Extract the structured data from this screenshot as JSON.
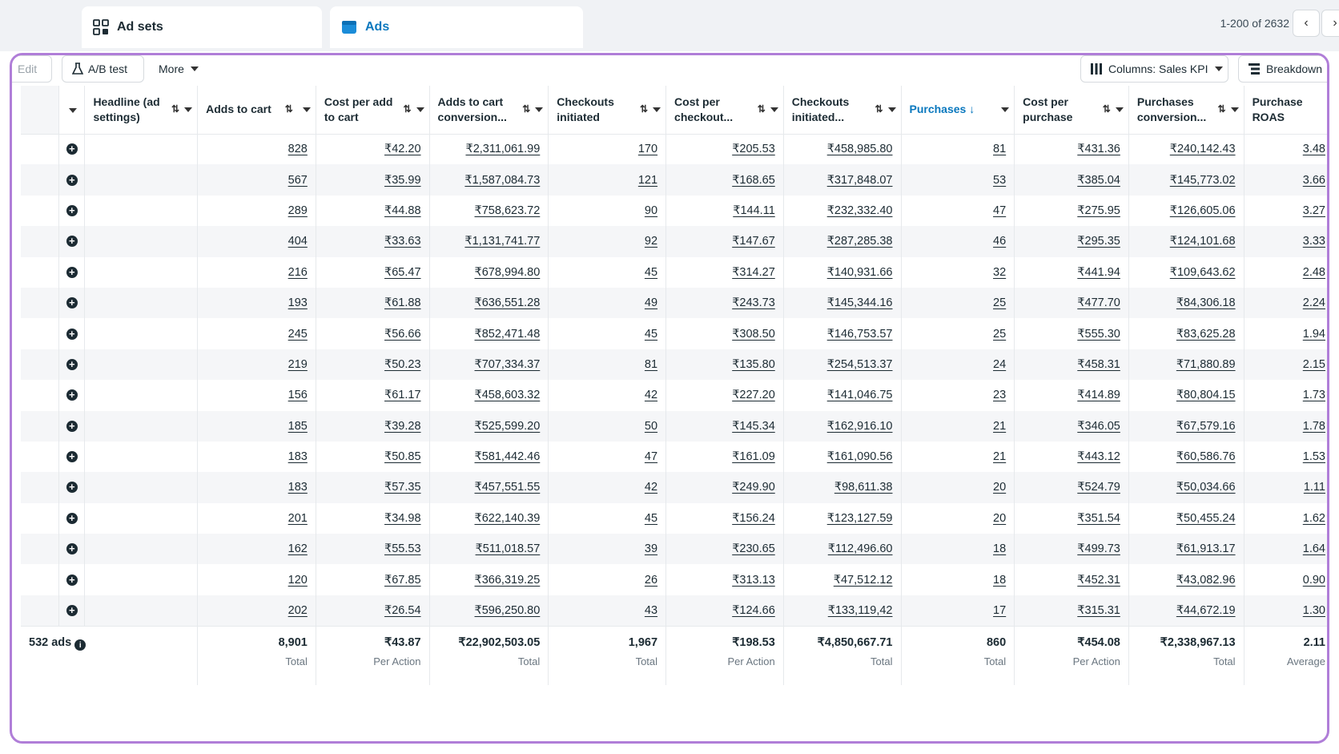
{
  "tabs": [
    {
      "label": "Ad sets",
      "icon": "ad-sets-icon"
    },
    {
      "label": "Ads",
      "icon": "ads-icon"
    }
  ],
  "pager": {
    "text": "1-200 of 2632"
  },
  "toolbar": {
    "edit_label": "Edit",
    "ab_test_label": "A/B test",
    "more_label": "More",
    "columns_label": "Columns: Sales KPI",
    "breakdown_label": "Breakdown"
  },
  "columns": [
    "Headline (ad settings)",
    "Adds to cart",
    "Cost per add to cart",
    "Adds to cart conversion...",
    "Checkouts initiated",
    "Cost per checkout...",
    "Checkouts initiated...",
    "Purchases",
    "Cost per purchase",
    "Purchases conversion...",
    "Purchase ROAS"
  ],
  "rows": [
    [
      "828",
      "₹42.20",
      "₹2,311,061.99",
      "170",
      "₹205.53",
      "₹458,985.80",
      "81",
      "₹431.36",
      "₹240,142.43",
      "3.48"
    ],
    [
      "567",
      "₹35.99",
      "₹1,587,084.73",
      "121",
      "₹168.65",
      "₹317,848.07",
      "53",
      "₹385.04",
      "₹145,773.02",
      "3.66"
    ],
    [
      "289",
      "₹44.88",
      "₹758,623.72",
      "90",
      "₹144.11",
      "₹232,332.40",
      "47",
      "₹275.95",
      "₹126,605.06",
      "3.27"
    ],
    [
      "404",
      "₹33.63",
      "₹1,131,741.77",
      "92",
      "₹147.67",
      "₹287,285.38",
      "46",
      "₹295.35",
      "₹124,101.68",
      "3.33"
    ],
    [
      "216",
      "₹65.47",
      "₹678,994.80",
      "45",
      "₹314.27",
      "₹140,931.66",
      "32",
      "₹441.94",
      "₹109,643.62",
      "2.48"
    ],
    [
      "193",
      "₹61.88",
      "₹636,551.28",
      "49",
      "₹243.73",
      "₹145,344.16",
      "25",
      "₹477.70",
      "₹84,306.18",
      "2.24"
    ],
    [
      "245",
      "₹56.66",
      "₹852,471.48",
      "45",
      "₹308.50",
      "₹146,753.57",
      "25",
      "₹555.30",
      "₹83,625.28",
      "1.94"
    ],
    [
      "219",
      "₹50.23",
      "₹707,334.37",
      "81",
      "₹135.80",
      "₹254,513.37",
      "24",
      "₹458.31",
      "₹71,880.89",
      "2.15"
    ],
    [
      "156",
      "₹61.17",
      "₹458,603.32",
      "42",
      "₹227.20",
      "₹141,046.75",
      "23",
      "₹414.89",
      "₹80,804.15",
      "1.73"
    ],
    [
      "185",
      "₹39.28",
      "₹525,599.20",
      "50",
      "₹145.34",
      "₹162,916.10",
      "21",
      "₹346.05",
      "₹67,579.16",
      "1.78"
    ],
    [
      "183",
      "₹50.85",
      "₹581,442.46",
      "47",
      "₹161.09",
      "₹161,090.56",
      "21",
      "₹443.12",
      "₹60,586.76",
      "1.53"
    ],
    [
      "183",
      "₹57.35",
      "₹457,551.55",
      "42",
      "₹249.90",
      "₹98,611.38",
      "20",
      "₹524.79",
      "₹50,034.66",
      "1.11"
    ],
    [
      "201",
      "₹34.98",
      "₹622,140.39",
      "45",
      "₹156.24",
      "₹123,127.59",
      "20",
      "₹351.54",
      "₹50,455.24",
      "1.62"
    ],
    [
      "162",
      "₹55.53",
      "₹511,018.57",
      "39",
      "₹230.65",
      "₹112,496.60",
      "18",
      "₹499.73",
      "₹61,913.17",
      "1.64"
    ],
    [
      "120",
      "₹67.85",
      "₹366,319.25",
      "26",
      "₹313.13",
      "₹47,512.12",
      "18",
      "₹452.31",
      "₹43,082.96",
      "0.90"
    ],
    [
      "202",
      "₹26.54",
      "₹596,250.80",
      "43",
      "₹124.66",
      "₹133,119,42",
      "17",
      "₹315.31",
      "₹44,672.19",
      "1.30"
    ]
  ],
  "footer": {
    "label": "532 ads",
    "totals": [
      {
        "value": "8,901",
        "label": "Total"
      },
      {
        "value": "₹43.87",
        "label": "Per Action"
      },
      {
        "value": "₹22,902,503.05",
        "label": "Total"
      },
      {
        "value": "1,967",
        "label": "Total"
      },
      {
        "value": "₹198.53",
        "label": "Per Action"
      },
      {
        "value": "₹4,850,667.71",
        "label": "Total"
      },
      {
        "value": "860",
        "label": "Total"
      },
      {
        "value": "₹454.08",
        "label": "Per Action"
      },
      {
        "value": "₹2,338,967.13",
        "label": "Total"
      },
      {
        "value": "2.11",
        "label": "Average"
      }
    ]
  },
  "colors": {
    "accent": "#0a78be",
    "frame": "#b07ed8"
  }
}
